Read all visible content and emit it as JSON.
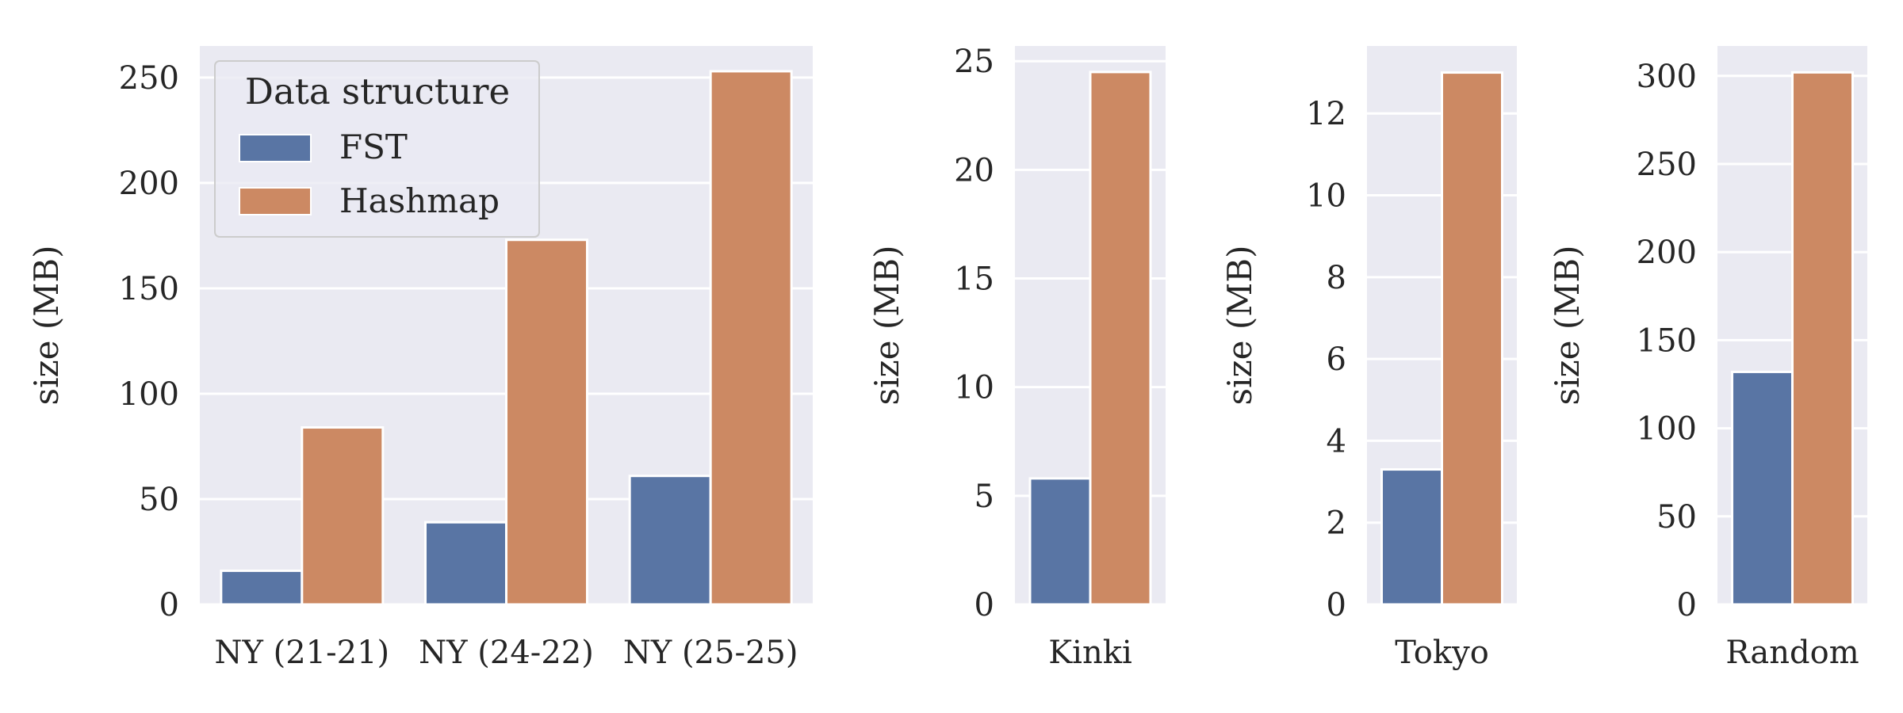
{
  "figure": {
    "colors": {
      "FST": "#5975a4",
      "Hashmap": "#cc8963",
      "plot_background": "#eaeaf2",
      "gridline": "#ffffff",
      "text": "#262626"
    }
  },
  "legend": {
    "title": "Data structure",
    "entries": [
      "FST",
      "Hashmap"
    ],
    "placement": "top-left of first panel"
  },
  "chart_data": [
    {
      "type": "bar",
      "categories": [
        "NY (21-21)",
        "NY (24-22)",
        "NY (25-25)"
      ],
      "series": [
        {
          "name": "FST",
          "values": [
            16,
            39,
            61
          ]
        },
        {
          "name": "Hashmap",
          "values": [
            84,
            173,
            253
          ]
        }
      ],
      "xlabel": "",
      "ylabel": "size (MB)",
      "ylim": [
        0,
        265
      ],
      "yticks": [
        0,
        50,
        100,
        150,
        200,
        250
      ],
      "grid": true
    },
    {
      "type": "bar",
      "categories": [
        "Kinki"
      ],
      "series": [
        {
          "name": "FST",
          "values": [
            5.8
          ]
        },
        {
          "name": "Hashmap",
          "values": [
            24.5
          ]
        }
      ],
      "xlabel": "",
      "ylabel": "size (MB)",
      "ylim": [
        0,
        25.7
      ],
      "yticks": [
        0,
        5,
        10,
        15,
        20,
        25
      ],
      "grid": true
    },
    {
      "type": "bar",
      "categories": [
        "Tokyo"
      ],
      "series": [
        {
          "name": "FST",
          "values": [
            3.3
          ]
        },
        {
          "name": "Hashmap",
          "values": [
            13.0
          ]
        }
      ],
      "xlabel": "",
      "ylabel": "size (MB)",
      "ylim": [
        0,
        13.65
      ],
      "yticks": [
        0,
        2,
        4,
        6,
        8,
        10,
        12
      ],
      "grid": true
    },
    {
      "type": "bar",
      "categories": [
        "Random"
      ],
      "series": [
        {
          "name": "FST",
          "values": [
            132
          ]
        },
        {
          "name": "Hashmap",
          "values": [
            302
          ]
        }
      ],
      "xlabel": "",
      "ylabel": "size (MB)",
      "ylim": [
        0,
        317
      ],
      "yticks": [
        0,
        50,
        100,
        150,
        200,
        250,
        300
      ],
      "grid": true
    }
  ]
}
